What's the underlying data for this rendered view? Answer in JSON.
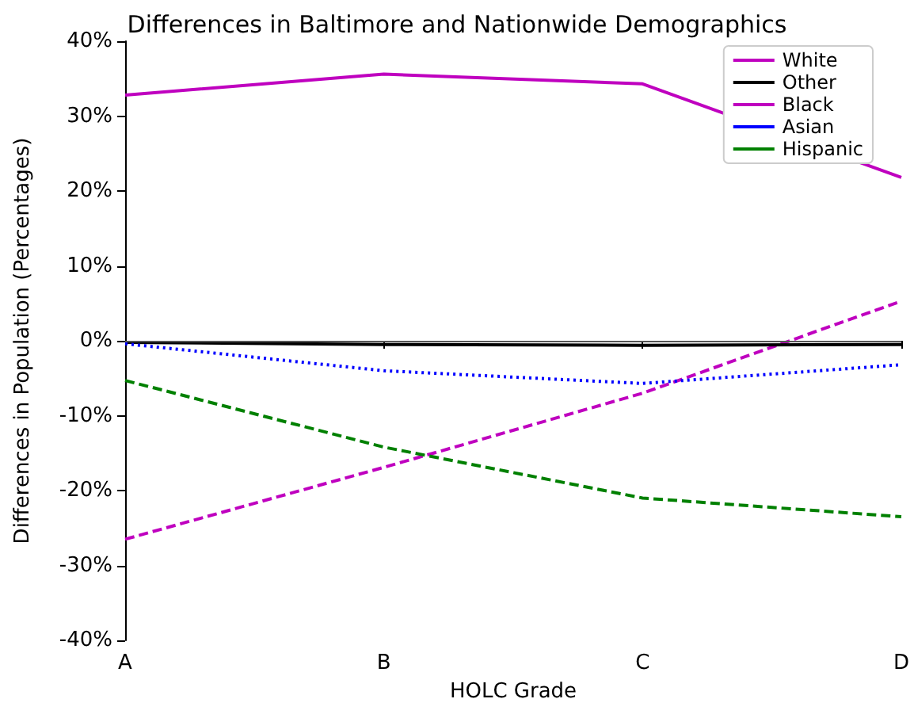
{
  "chart_data": {
    "type": "line",
    "title": "Differences in Baltimore and Nationwide Demographics",
    "xlabel": "HOLC Grade",
    "ylabel": "Differences in Population (Percentages)",
    "categories": [
      "A",
      "B",
      "C",
      "D"
    ],
    "series": [
      {
        "name": "White",
        "color": "#bf00bf",
        "line_style": "dashed",
        "values": [
          -26.5,
          -16.9,
          -7.0,
          5.3
        ]
      },
      {
        "name": "Other",
        "color": "#000000",
        "line_style": "solid",
        "values": [
          -0.2,
          -0.5,
          -0.6,
          -0.5
        ]
      },
      {
        "name": "Black",
        "color": "#bf00bf",
        "line_style": "solid",
        "values": [
          32.8,
          35.6,
          34.3,
          21.8
        ]
      },
      {
        "name": "Asian",
        "color": "#0000ff",
        "line_style": "dotted",
        "values": [
          -0.4,
          -4.0,
          -5.7,
          -3.2
        ]
      },
      {
        "name": "Hispanic",
        "color": "#008000",
        "line_style": "dashed",
        "values": [
          -5.3,
          -14.2,
          -21.0,
          -23.5
        ]
      }
    ],
    "ylim": [
      -40,
      40
    ],
    "yticks": [
      {
        "value": -40,
        "label": "-40%"
      },
      {
        "value": -30,
        "label": "-30%"
      },
      {
        "value": -20,
        "label": "-20%"
      },
      {
        "value": -10,
        "label": "-10%"
      },
      {
        "value": 0,
        "label": "0%"
      },
      {
        "value": 10,
        "label": "10%"
      },
      {
        "value": 20,
        "label": "20%"
      },
      {
        "value": 30,
        "label": "30%"
      },
      {
        "value": 40,
        "label": "40%"
      }
    ],
    "ref_lines": [
      {
        "axis": "y",
        "value": 0,
        "color": "#555555",
        "line_style": "solid"
      }
    ],
    "legend": "top right",
    "grid": false,
    "marker": "none"
  }
}
